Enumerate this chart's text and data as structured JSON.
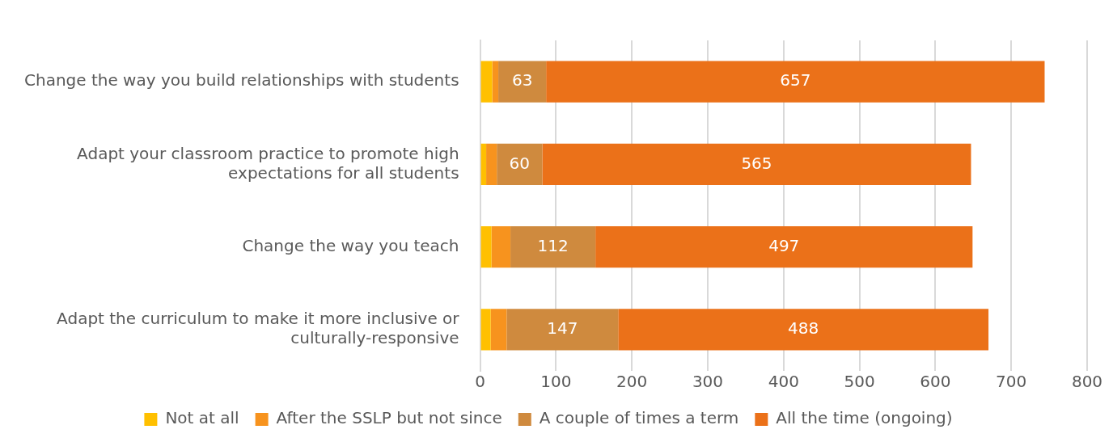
{
  "chart_data": {
    "type": "bar",
    "orientation": "horizontal",
    "stacked": true,
    "categories": [
      "Change the way you build relationships with students",
      "Adapt your classroom practice to promote high expectations for all students",
      "Change the way you teach",
      "Adapt the curriculum to make it more inclusive or culturally-responsive"
    ],
    "series": [
      {
        "name": "Not at all",
        "color": "#ffc000",
        "values": [
          16,
          8,
          15,
          14
        ]
      },
      {
        "name": "After the SSLP but not since",
        "color": "#f7931e",
        "values": [
          8,
          14,
          25,
          21
        ]
      },
      {
        "name": "A couple of times a term",
        "color": "#cf8a3e",
        "values": [
          63,
          60,
          112,
          147
        ],
        "value_labels": [
          "63",
          "60",
          "112",
          "147"
        ]
      },
      {
        "name": "All the time (ongoing)",
        "color": "#eb7119",
        "values": [
          657,
          565,
          497,
          488
        ],
        "value_labels": [
          "657",
          "565",
          "497",
          "488"
        ]
      }
    ],
    "xlim": [
      0,
      800
    ],
    "xticks": [
      0,
      100,
      200,
      300,
      400,
      500,
      600,
      700,
      800
    ],
    "grid": "x",
    "legend": "bottom"
  }
}
